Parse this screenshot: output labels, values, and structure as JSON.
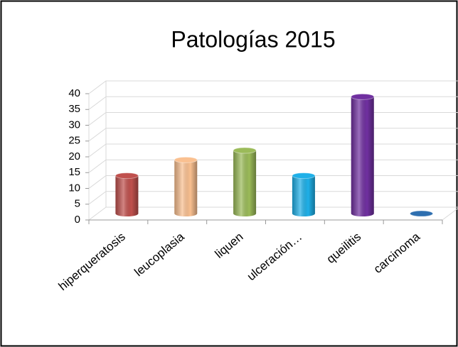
{
  "chart_data": {
    "type": "bar3d",
    "title": "Patologías 2015",
    "categories": [
      "hiperqueratosis",
      "leucoplasia",
      "liquen",
      "ulceración…",
      "queilitis",
      "carcinoma"
    ],
    "values": [
      12,
      17,
      20,
      12,
      37,
      0
    ],
    "colors": [
      "#c0504d",
      "#fac090",
      "#9bbb59",
      "#1fb0e8",
      "#7030a0",
      "#2e6fb0"
    ],
    "ylim": [
      0,
      40
    ],
    "yticks": [
      0,
      5,
      10,
      15,
      20,
      25,
      30,
      35,
      40
    ],
    "grid": true
  }
}
